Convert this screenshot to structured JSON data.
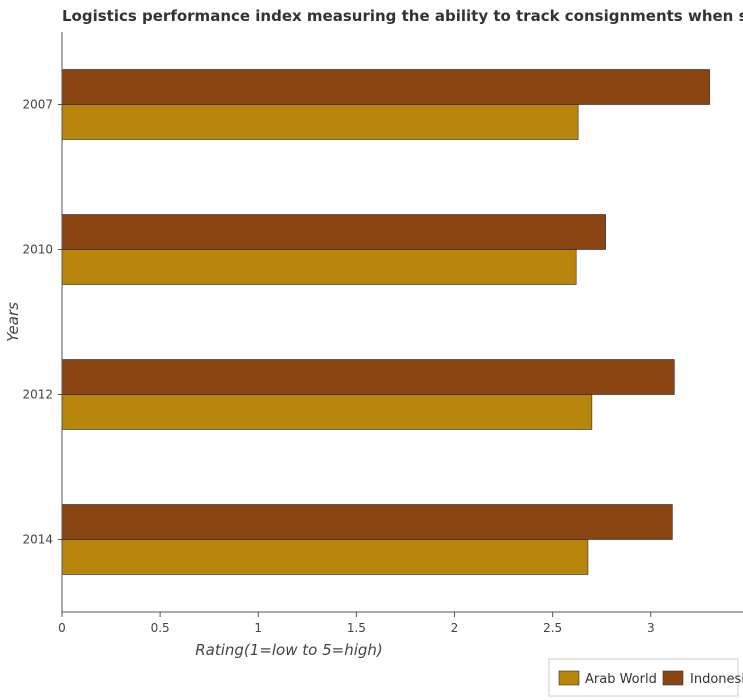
{
  "chart_data": {
    "type": "bar",
    "orientation": "horizontal",
    "title": "Logistics performance index measuring the ability to track consignments when shipping to a market",
    "xlabel": "Rating(1=low to 5=high)",
    "ylabel": "Years",
    "categories": [
      "2007",
      "2010",
      "2012",
      "2014"
    ],
    "series": [
      {
        "name": "Arab World",
        "color": "#b8860b",
        "values": [
          2.63,
          2.62,
          2.7,
          2.68
        ]
      },
      {
        "name": "Indonesia",
        "color": "#8b4513",
        "values": [
          3.3,
          2.77,
          3.12,
          3.11
        ]
      }
    ],
    "xlim": [
      0,
      3.47
    ],
    "xticks": [
      "0",
      "0.5",
      "1",
      "1.5",
      "2",
      "2.5",
      "3"
    ],
    "grid": false,
    "legend_position": "bottom-right"
  }
}
